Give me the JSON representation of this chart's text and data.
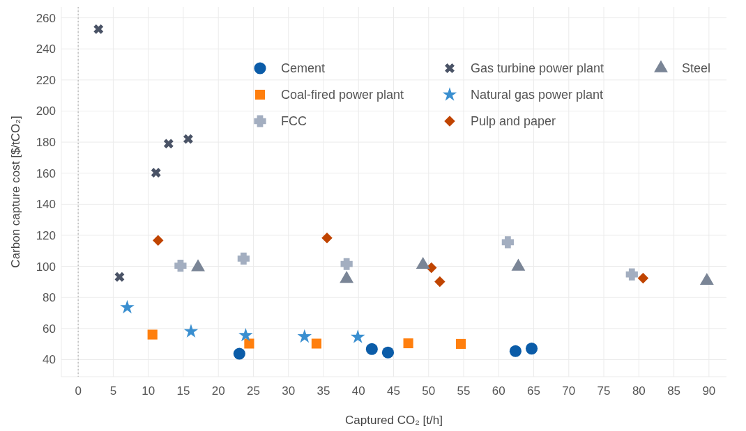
{
  "chart_data": {
    "type": "scatter",
    "xlabel": "Captured CO₂ [t/h]",
    "ylabel": "Carbon capture cost [$/tCO₂]",
    "xlim": [
      -2.4,
      92.5
    ],
    "xticks": [
      0,
      5,
      10,
      15,
      20,
      25,
      30,
      35,
      40,
      45,
      50,
      55,
      60,
      65,
      70,
      75,
      80,
      85,
      90
    ],
    "ylim": [
      29,
      267
    ],
    "yticks": [
      40,
      60,
      80,
      100,
      120,
      140,
      160,
      180,
      200,
      220,
      240,
      260
    ],
    "grid": true,
    "legend": "top",
    "ref_lines": [
      {
        "axis": "x",
        "value": 0,
        "color": "#aaaaaa",
        "line_style": "dotted"
      }
    ],
    "series": [
      {
        "name": "Cement",
        "color": "#0b5ca8",
        "marker": "circle",
        "x": [
          23.0,
          41.9,
          44.2,
          62.4,
          64.7
        ],
        "values": [
          43.8,
          46.8,
          44.6,
          45.5,
          47.1
        ]
      },
      {
        "name": "Coal-fired power plant",
        "color": "#ff7f0e",
        "marker": "square",
        "x": [
          10.6,
          24.4,
          34.0,
          47.1,
          54.6
        ],
        "values": [
          56.1,
          50.3,
          50.3,
          50.5,
          50.1
        ]
      },
      {
        "name": "FCC",
        "color": "#a3aec0",
        "marker": "plus",
        "x": [
          14.6,
          23.6,
          38.3,
          61.3,
          79.0
        ],
        "values": [
          100.4,
          105,
          101.5,
          115.6,
          94.8
        ]
      },
      {
        "name": "Gas turbine power plant",
        "color": "#4a5366",
        "marker": "cross",
        "x": [
          2.9,
          5.9,
          11.1,
          12.9,
          15.7
        ],
        "values": [
          252.7,
          93.2,
          160.3,
          179,
          182
        ]
      },
      {
        "name": "Natural gas power plant",
        "color": "#3a8fd0",
        "marker": "star",
        "x": [
          7.0,
          16.1,
          23.9,
          32.3,
          39.9
        ],
        "values": [
          73.6,
          58.1,
          55.6,
          54.8,
          54.5
        ]
      },
      {
        "name": "Pulp and paper",
        "color": "#c04400",
        "marker": "diamond",
        "x": [
          11.4,
          35.5,
          50.4,
          51.6,
          80.6
        ],
        "values": [
          116.7,
          118.3,
          99.1,
          90.2,
          92.4
        ]
      },
      {
        "name": "Steel",
        "color": "#7a8596",
        "marker": "triangle",
        "x": [
          17.1,
          38.3,
          49.2,
          62.8,
          89.7
        ],
        "values": [
          99.5,
          92,
          101,
          99.8,
          90.7
        ]
      }
    ]
  }
}
